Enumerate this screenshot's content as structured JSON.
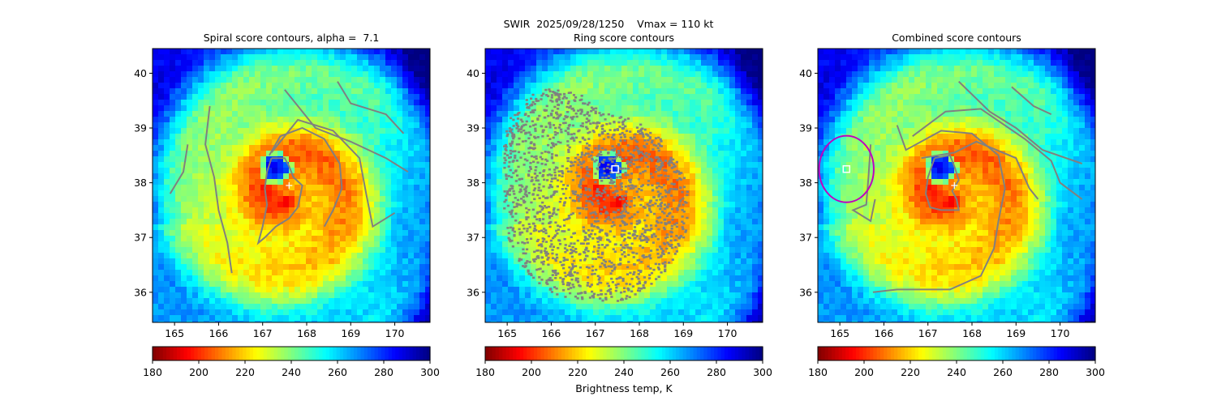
{
  "figure": {
    "suptitle": "SWIR  2025/09/28/1250    Vmax = 110 kt",
    "colorbar_label": "Brightness temp, K"
  },
  "chart_data": [
    {
      "type": "heatmap",
      "title": "Spiral score contours, alpha =  7.1",
      "xlim": [
        164.5,
        170.8
      ],
      "ylim": [
        35.45,
        40.45
      ],
      "x_ticks": [
        165,
        166,
        167,
        168,
        169,
        170
      ],
      "y_ticks": [
        36,
        37,
        38,
        39,
        40
      ],
      "colorbar": {
        "ticks": [
          180,
          200,
          220,
          240,
          260,
          280,
          300
        ],
        "range": [
          180,
          300
        ],
        "colormap": "jet_r"
      },
      "eye": {
        "lon": 167.3,
        "lat": 38.27
      },
      "center_marker": {
        "lon": 167.6,
        "lat": 37.95,
        "symbol": "+"
      },
      "contours": [
        [
          [
            167.2,
            38.45
          ],
          [
            167.5,
            38.45
          ],
          [
            167.6,
            38.3
          ],
          [
            167.7,
            38.1
          ],
          [
            167.9,
            37.95
          ],
          [
            167.85,
            37.75
          ],
          [
            167.8,
            37.55
          ],
          [
            167.6,
            37.35
          ],
          [
            167.3,
            37.2
          ],
          [
            167.05,
            37.0
          ],
          [
            166.9,
            36.9
          ],
          [
            167.0,
            37.2
          ],
          [
            167.1,
            37.6
          ],
          [
            167.05,
            37.9
          ],
          [
            167.1,
            38.2
          ],
          [
            167.2,
            38.45
          ]
        ],
        [
          [
            167.15,
            38.5
          ],
          [
            167.4,
            38.85
          ],
          [
            167.9,
            39.0
          ],
          [
            168.4,
            38.8
          ],
          [
            168.75,
            38.35
          ],
          [
            168.8,
            37.9
          ],
          [
            168.6,
            37.5
          ],
          [
            168.4,
            37.2
          ]
        ],
        [
          [
            167.2,
            38.55
          ],
          [
            167.8,
            39.15
          ],
          [
            168.6,
            38.95
          ],
          [
            169.2,
            38.45
          ],
          [
            169.35,
            37.8
          ],
          [
            169.5,
            37.2
          ],
          [
            170.0,
            37.45
          ]
        ],
        [
          [
            167.5,
            39.7
          ],
          [
            168.2,
            39.0
          ],
          [
            169.0,
            38.75
          ],
          [
            169.8,
            38.45
          ],
          [
            170.3,
            38.2
          ]
        ],
        [
          [
            168.7,
            39.85
          ],
          [
            169.0,
            39.45
          ],
          [
            169.8,
            39.25
          ],
          [
            170.2,
            38.9
          ]
        ],
        [
          [
            165.8,
            39.4
          ],
          [
            165.7,
            38.7
          ],
          [
            165.9,
            38.1
          ],
          [
            166.0,
            37.5
          ],
          [
            166.2,
            36.9
          ],
          [
            166.3,
            36.35
          ]
        ],
        [
          [
            165.3,
            38.7
          ],
          [
            165.2,
            38.2
          ],
          [
            164.9,
            37.8
          ]
        ]
      ]
    },
    {
      "type": "heatmap",
      "title": "Ring score contours",
      "xlim": [
        164.5,
        170.8
      ],
      "ylim": [
        35.45,
        40.45
      ],
      "x_ticks": [
        165,
        166,
        167,
        168,
        169,
        170
      ],
      "y_ticks": [
        36,
        37,
        38,
        39,
        40
      ],
      "colorbar": {
        "ticks": [
          180,
          200,
          220,
          240,
          260,
          280,
          300
        ],
        "range": [
          180,
          300
        ],
        "colormap": "jet_r"
      },
      "eye": {
        "lon": 167.3,
        "lat": 38.27
      },
      "square_marker": {
        "lon": 167.45,
        "lat": 38.25
      },
      "ring_region": {
        "lon": 167.0,
        "lat": 37.6,
        "extent": "approx. 164.9–169.1 E, 35.85–39.75 N"
      }
    },
    {
      "type": "heatmap",
      "title": "Combined score contours",
      "xlim": [
        164.5,
        170.8
      ],
      "ylim": [
        35.45,
        40.45
      ],
      "x_ticks": [
        165,
        166,
        167,
        168,
        169,
        170
      ],
      "y_ticks": [
        36,
        37,
        38,
        39,
        40
      ],
      "colorbar": {
        "ticks": [
          180,
          200,
          220,
          240,
          260,
          280,
          300
        ],
        "range": [
          180,
          300
        ],
        "colormap": "jet_r"
      },
      "eye": {
        "lon": 167.3,
        "lat": 38.27
      },
      "center_marker": {
        "lon": 167.6,
        "lat": 37.95,
        "symbol": "+"
      },
      "square_marker": {
        "lon": 165.15,
        "lat": 38.25
      },
      "circle_marker": {
        "lon": 165.15,
        "lat": 38.25,
        "radius_deg": 0.62,
        "color": "#c000c0"
      },
      "contours": [
        [
          [
            167.15,
            38.45
          ],
          [
            167.5,
            38.5
          ],
          [
            167.6,
            38.3
          ],
          [
            167.7,
            38.05
          ],
          [
            167.55,
            37.85
          ],
          [
            167.65,
            37.7
          ],
          [
            167.7,
            37.5
          ],
          [
            167.3,
            37.5
          ],
          [
            167.05,
            37.55
          ],
          [
            166.95,
            37.8
          ],
          [
            167.0,
            38.1
          ],
          [
            167.15,
            38.45
          ]
        ],
        [
          [
            166.3,
            39.05
          ],
          [
            166.5,
            38.6
          ],
          [
            167.3,
            38.95
          ],
          [
            168.0,
            38.9
          ],
          [
            168.6,
            38.5
          ],
          [
            168.75,
            37.9
          ],
          [
            168.6,
            37.3
          ],
          [
            168.5,
            36.8
          ],
          [
            168.2,
            36.3
          ],
          [
            167.5,
            36.05
          ],
          [
            166.3,
            36.05
          ],
          [
            165.75,
            36.0
          ]
        ],
        [
          [
            166.65,
            38.85
          ],
          [
            167.4,
            39.3
          ],
          [
            168.2,
            39.35
          ],
          [
            169.2,
            38.8
          ],
          [
            169.8,
            38.4
          ],
          [
            170.0,
            38.0
          ],
          [
            170.5,
            37.7
          ]
        ],
        [
          [
            166.85,
            38.45
          ],
          [
            167.6,
            38.55
          ],
          [
            168.1,
            38.75
          ],
          [
            169.0,
            38.45
          ],
          [
            169.3,
            37.9
          ],
          [
            169.5,
            37.7
          ]
        ],
        [
          [
            167.7,
            39.85
          ],
          [
            168.4,
            39.3
          ],
          [
            169.0,
            39.0
          ],
          [
            169.6,
            38.6
          ],
          [
            170.5,
            38.35
          ]
        ],
        [
          [
            168.9,
            39.75
          ],
          [
            169.4,
            39.4
          ],
          [
            169.8,
            39.25
          ]
        ],
        [
          [
            165.7,
            38.7
          ],
          [
            165.65,
            38.1
          ],
          [
            165.6,
            37.6
          ],
          [
            165.3,
            37.5
          ],
          [
            165.7,
            37.3
          ],
          [
            165.8,
            37.7
          ]
        ]
      ]
    }
  ]
}
